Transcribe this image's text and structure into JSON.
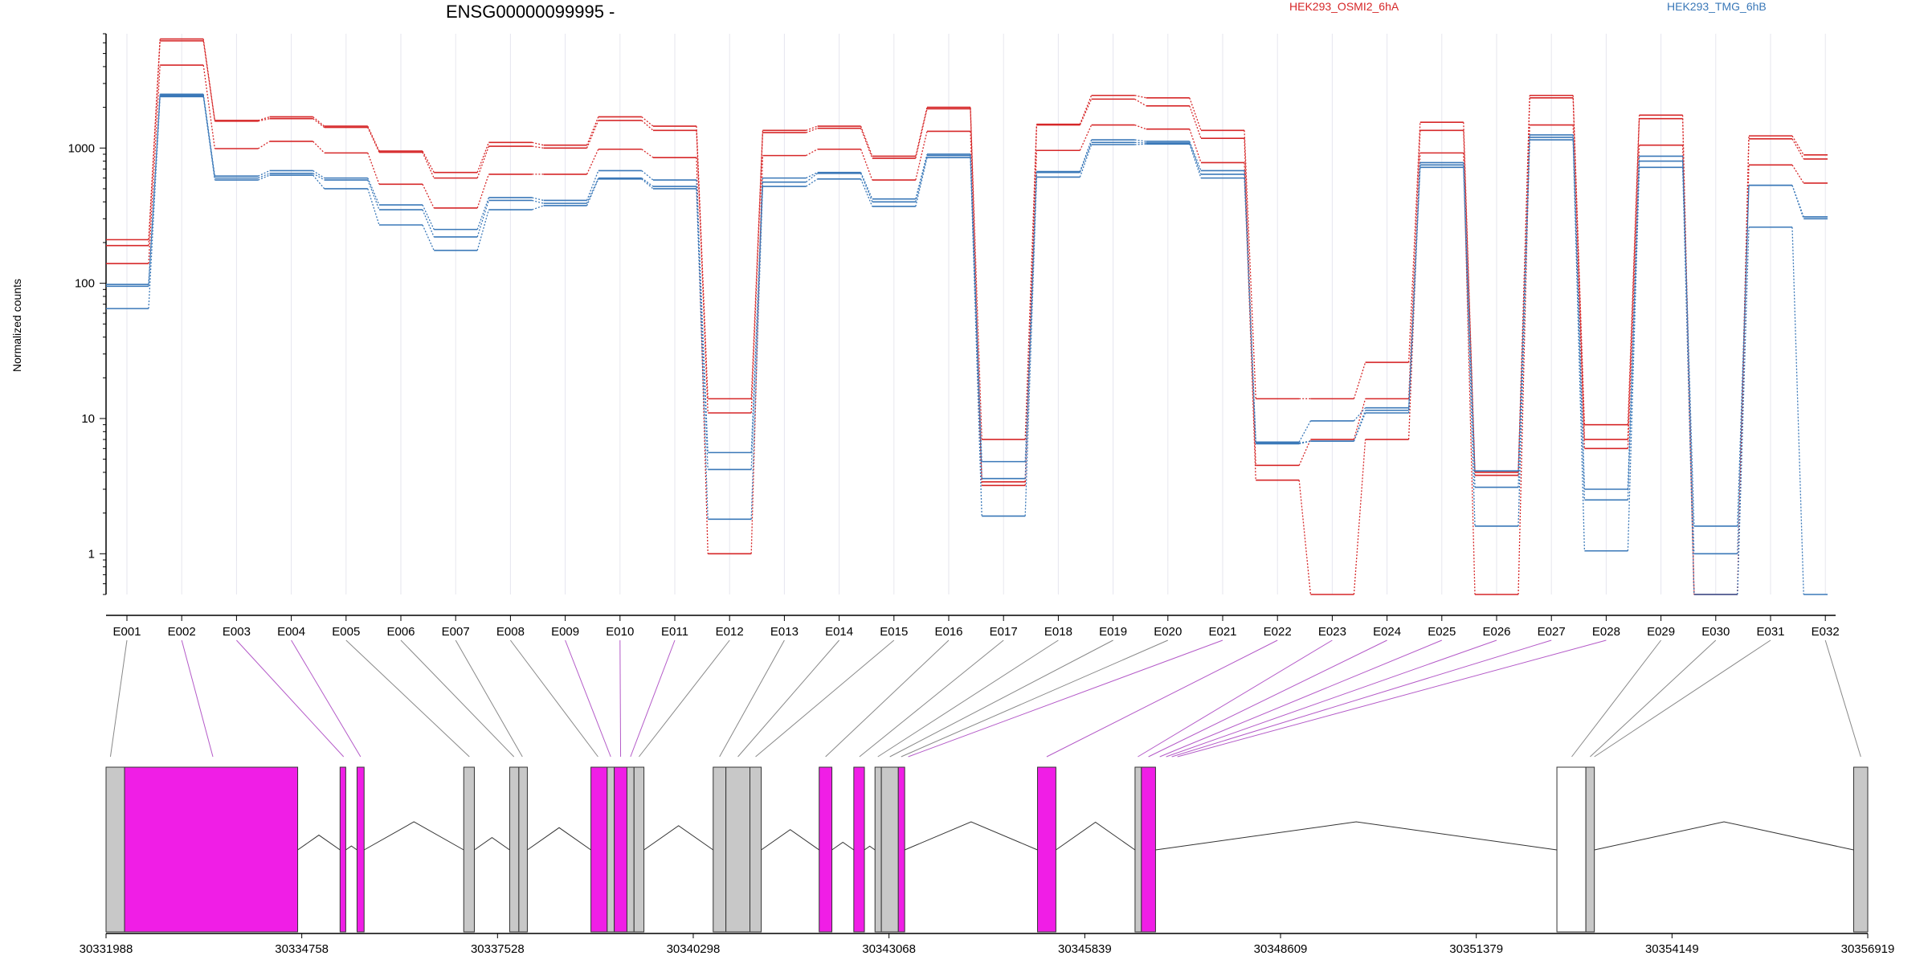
{
  "chart_data": {
    "type": "line",
    "title": "ENSG00000099995 -",
    "ylabel": "Normalized counts",
    "xlabel": "",
    "y_scale": "log",
    "ylim": [
      0.5,
      7000
    ],
    "y_ticks": [
      1,
      10,
      100,
      1000
    ],
    "y_tick_labels": [
      "1",
      "10",
      "100",
      "1000"
    ],
    "legend": [
      {
        "label": "HEK293_OSMI2_6hA",
        "color": "#d62728"
      },
      {
        "label": "HEK293_TMG_6hB",
        "color": "#3a78b8"
      }
    ],
    "categories": [
      "E001",
      "E002",
      "E003",
      "E004",
      "E005",
      "E006",
      "E007",
      "E008",
      "E009",
      "E010",
      "E011",
      "E012",
      "E013",
      "E014",
      "E015",
      "E016",
      "E017",
      "E018",
      "E019",
      "E020",
      "E021",
      "E022",
      "E023",
      "E024",
      "E025",
      "E026",
      "E027",
      "E028",
      "E029",
      "E030",
      "E031",
      "E032"
    ],
    "series": [
      {
        "group": 0,
        "color": "#d62728",
        "values": [
          210,
          6400,
          1600,
          1700,
          1450,
          950,
          660,
          1100,
          1050,
          1700,
          1450,
          14,
          1350,
          1450,
          870,
          2000,
          7,
          1500,
          2450,
          2350,
          1350,
          14,
          14,
          26,
          1550,
          4,
          2450,
          9,
          1750,
          0.5,
          1230,
          890
        ]
      },
      {
        "group": 0,
        "color": "#d62728",
        "values": [
          190,
          6200,
          1580,
          1650,
          1420,
          930,
          600,
          1030,
          1000,
          1600,
          1350,
          11,
          1300,
          1400,
          840,
          1950,
          3.4,
          1480,
          2300,
          2050,
          1180,
          4.5,
          7,
          14,
          1350,
          3.8,
          2350,
          7,
          1650,
          0.5,
          1170,
          830
        ]
      },
      {
        "group": 0,
        "color": "#d62728",
        "values": [
          140,
          4100,
          990,
          1120,
          920,
          540,
          360,
          640,
          640,
          980,
          850,
          1,
          880,
          980,
          580,
          1330,
          3.2,
          960,
          1480,
          1380,
          780,
          3.5,
          0.5,
          7,
          920,
          0.5,
          1480,
          6,
          1050,
          0.5,
          750,
          550
        ]
      },
      {
        "group": 1,
        "color": "#3a78b8",
        "values": [
          98,
          2500,
          620,
          680,
          600,
          380,
          250,
          430,
          410,
          680,
          580,
          5.6,
          600,
          660,
          420,
          900,
          4.8,
          670,
          1150,
          1120,
          680,
          6.7,
          9.6,
          12,
          780,
          4.1,
          1250,
          3,
          870,
          1.6,
          530,
          310
        ]
      },
      {
        "group": 1,
        "color": "#3a78b8",
        "values": [
          95,
          2450,
          600,
          650,
          580,
          350,
          220,
          410,
          390,
          600,
          520,
          4.2,
          560,
          650,
          400,
          880,
          3.6,
          660,
          1100,
          1090,
          640,
          6.6,
          6.8,
          11.5,
          750,
          3.1,
          1200,
          2.5,
          800,
          1,
          530,
          300
        ]
      },
      {
        "group": 1,
        "color": "#3a78b8",
        "values": [
          65,
          2400,
          580,
          630,
          500,
          270,
          175,
          350,
          375,
          590,
          500,
          1.8,
          520,
          590,
          370,
          850,
          1.9,
          610,
          1060,
          1070,
          600,
          6.5,
          6.8,
          11,
          720,
          1.6,
          1150,
          1.05,
          720,
          0.5,
          260,
          0.5
        ]
      }
    ]
  },
  "gene_model": {
    "coordinate_labels": [
      "30331988",
      "30334758",
      "30337528",
      "30340298",
      "30343068",
      "30345839",
      "30348609",
      "30351379",
      "30354149",
      "30356919"
    ],
    "colors": {
      "exon": "#c8c8c8",
      "highlight": "#f01ee6",
      "connector_plain": "#888888",
      "connector_highlight": "#b45ac8"
    },
    "exon_blocks": [
      {
        "start": 30331988,
        "end": 30332250,
        "fill": "exon"
      },
      {
        "start": 30332250,
        "end": 30334700,
        "fill": "highlight"
      },
      {
        "start": 30335300,
        "end": 30335380,
        "fill": "highlight"
      },
      {
        "start": 30335540,
        "end": 30335640,
        "fill": "highlight"
      },
      {
        "start": 30337050,
        "end": 30337200,
        "fill": "exon"
      },
      {
        "start": 30337700,
        "end": 30337830,
        "fill": "exon"
      },
      {
        "start": 30337830,
        "end": 30337950,
        "fill": "exon"
      },
      {
        "start": 30338850,
        "end": 30339080,
        "fill": "highlight"
      },
      {
        "start": 30339080,
        "end": 30339180,
        "fill": "exon"
      },
      {
        "start": 30339180,
        "end": 30339360,
        "fill": "highlight"
      },
      {
        "start": 30339360,
        "end": 30339460,
        "fill": "exon"
      },
      {
        "start": 30339460,
        "end": 30339600,
        "fill": "exon"
      },
      {
        "start": 30340580,
        "end": 30340760,
        "fill": "exon"
      },
      {
        "start": 30340760,
        "end": 30341100,
        "fill": "exon"
      },
      {
        "start": 30341100,
        "end": 30341260,
        "fill": "exon"
      },
      {
        "start": 30342080,
        "end": 30342260,
        "fill": "highlight"
      },
      {
        "start": 30342570,
        "end": 30342720,
        "fill": "highlight"
      },
      {
        "start": 30342870,
        "end": 30342960,
        "fill": "exon"
      },
      {
        "start": 30342960,
        "end": 30343200,
        "fill": "exon"
      },
      {
        "start": 30343200,
        "end": 30343290,
        "fill": "highlight"
      },
      {
        "start": 30345170,
        "end": 30345430,
        "fill": "highlight"
      },
      {
        "start": 30346550,
        "end": 30346640,
        "fill": "exon"
      },
      {
        "start": 30346640,
        "end": 30346840,
        "fill": "highlight"
      },
      {
        "start": 30352520,
        "end": 30352930,
        "fill": "white"
      },
      {
        "start": 30352930,
        "end": 30353050,
        "fill": "exon"
      },
      {
        "start": 30356720,
        "end": 30356919,
        "fill": "exon"
      }
    ],
    "introns": [
      [
        30334700,
        30335300
      ],
      [
        30335380,
        30335540
      ],
      [
        30335640,
        30337050
      ],
      [
        30337200,
        30337700
      ],
      [
        30337950,
        30338850
      ],
      [
        30339600,
        30340580
      ],
      [
        30341260,
        30342080
      ],
      [
        30342260,
        30342570
      ],
      [
        30342720,
        30342870
      ],
      [
        30343290,
        30345170
      ],
      [
        30345430,
        30346550
      ],
      [
        30346840,
        30352520
      ],
      [
        30353050,
        30356720
      ]
    ],
    "exon_positions": [
      30332050,
      30333500,
      30335350,
      30335590,
      30337130,
      30337760,
      30337880,
      30338950,
      30339130,
      30339270,
      30339410,
      30339530,
      30340670,
      30340930,
      30341180,
      30342170,
      30342650,
      30342910,
      30343080,
      30343240,
      30343340,
      30345300,
      30346590,
      30346740,
      30346900,
      30346990,
      30347070,
      30347150,
      30352730,
      30352990,
      30353050,
      30356820
    ]
  }
}
